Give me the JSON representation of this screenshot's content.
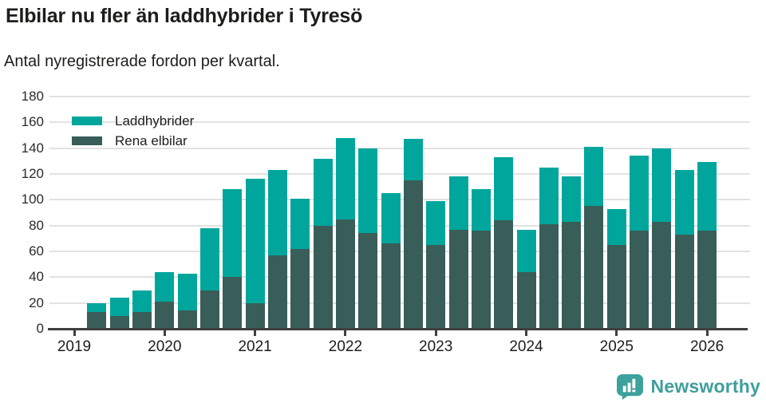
{
  "header": {
    "title": "Elbilar nu fler än laddhybrider i Tyresö",
    "subtitle": "Antal nyregistrerade fordon per kvartal."
  },
  "legend": {
    "items": [
      {
        "label": "Laddhybrider",
        "color": "#00a69c"
      },
      {
        "label": "Rena elbilar",
        "color": "#395d58"
      }
    ]
  },
  "footer": {
    "brand": "Newsworthy",
    "brand_color": "#3f9f9c",
    "logo_icon_color": "#3da19e"
  },
  "chart_data": {
    "type": "bar",
    "stacked": true,
    "title": "Elbilar nu fler än laddhybrider i Tyresö",
    "subtitle": "Antal nyregistrerade fordon per kvartal.",
    "xlabel": "",
    "ylabel": "",
    "ylim": [
      0,
      180
    ],
    "yticks": [
      0,
      20,
      40,
      60,
      80,
      100,
      120,
      140,
      160,
      180
    ],
    "xticks": [
      2019,
      2020,
      2021,
      2022,
      2023,
      2024,
      2025,
      2026
    ],
    "grid": "horizontal",
    "legend_position": "top-left-inside",
    "categories": [
      "2019 Q2",
      "2019 Q3",
      "2019 Q4",
      "2020 Q1",
      "2020 Q2",
      "2020 Q3",
      "2020 Q4",
      "2021 Q1",
      "2021 Q2",
      "2021 Q3",
      "2021 Q4",
      "2022 Q1",
      "2022 Q2",
      "2022 Q3",
      "2022 Q4",
      "2023 Q1",
      "2023 Q2",
      "2023 Q3",
      "2023 Q4",
      "2024 Q1",
      "2024 Q2",
      "2024 Q3",
      "2024 Q4",
      "2025 Q1",
      "2025 Q2",
      "2025 Q3",
      "2025 Q4",
      "2026 Q1"
    ],
    "series": [
      {
        "name": "Rena elbilar",
        "color": "#395d58",
        "values": [
          13,
          10,
          13,
          21,
          14,
          30,
          40,
          20,
          57,
          62,
          80,
          85,
          74,
          66,
          115,
          65,
          77,
          76,
          84,
          44,
          81,
          83,
          95,
          65,
          76,
          83,
          73,
          76
        ]
      },
      {
        "name": "Laddhybrider",
        "color": "#00a69c",
        "values": [
          7,
          14,
          17,
          23,
          29,
          48,
          68,
          96,
          66,
          39,
          52,
          63,
          66,
          39,
          32,
          34,
          41,
          32,
          49,
          33,
          44,
          35,
          46,
          28,
          58,
          57,
          50,
          53
        ]
      }
    ],
    "totals": [
      20,
      24,
      30,
      44,
      43,
      78,
      108,
      116,
      123,
      101,
      132,
      148,
      140,
      105,
      147,
      99,
      118,
      108,
      133,
      77,
      125,
      118,
      141,
      93,
      134,
      140,
      123,
      129
    ]
  }
}
